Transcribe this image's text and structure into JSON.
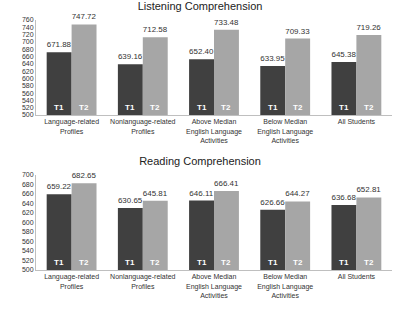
{
  "chart_data": [
    {
      "type": "bar",
      "title": "Listening Comprehension",
      "categories": [
        "Language-related Profiles",
        "Nonlanguage-related Profiles",
        "Above Median English Language Activities",
        "Below Median English Language Activities",
        "All Students"
      ],
      "series": [
        {
          "name": "T1",
          "color": "#404040",
          "values": [
            671.88,
            639.16,
            652.4,
            633.95,
            645.38
          ],
          "value_labels": [
            "671.88",
            "639.16",
            "652.40",
            "633.95",
            "645.38"
          ]
        },
        {
          "name": "T2",
          "color": "#a6a6a6",
          "values": [
            747.72,
            712.58,
            733.48,
            709.33,
            719.26
          ],
          "value_labels": [
            "747.72",
            "712.58",
            "733.48",
            "709.33",
            "719.26"
          ]
        }
      ],
      "ylim": [
        500,
        760
      ],
      "yticks": [
        500,
        520,
        540,
        560,
        580,
        600,
        620,
        640,
        660,
        680,
        700,
        720,
        740,
        760
      ],
      "grid": false,
      "data_labels": true
    },
    {
      "type": "bar",
      "title": "Reading Comprehension",
      "categories": [
        "Language-related Profiles",
        "Nonlanguage-related Profiles",
        "Above Median English Language Activities",
        "Below Median English Language Activities",
        "All Students"
      ],
      "series": [
        {
          "name": "T1",
          "color": "#404040",
          "values": [
            659.22,
            630.65,
            646.11,
            626.66,
            636.68
          ],
          "value_labels": [
            "659.22",
            "630.65",
            "646.11",
            "626.66",
            "636.68"
          ]
        },
        {
          "name": "T2",
          "color": "#a6a6a6",
          "values": [
            682.65,
            645.81,
            666.41,
            644.27,
            652.81
          ],
          "value_labels": [
            "682.65",
            "645.81",
            "666.41",
            "644.27",
            "652.81"
          ]
        }
      ],
      "ylim": [
        500,
        700
      ],
      "yticks": [
        500,
        520,
        540,
        560,
        580,
        600,
        620,
        640,
        660,
        680,
        700
      ],
      "grid": false,
      "data_labels": true
    }
  ]
}
